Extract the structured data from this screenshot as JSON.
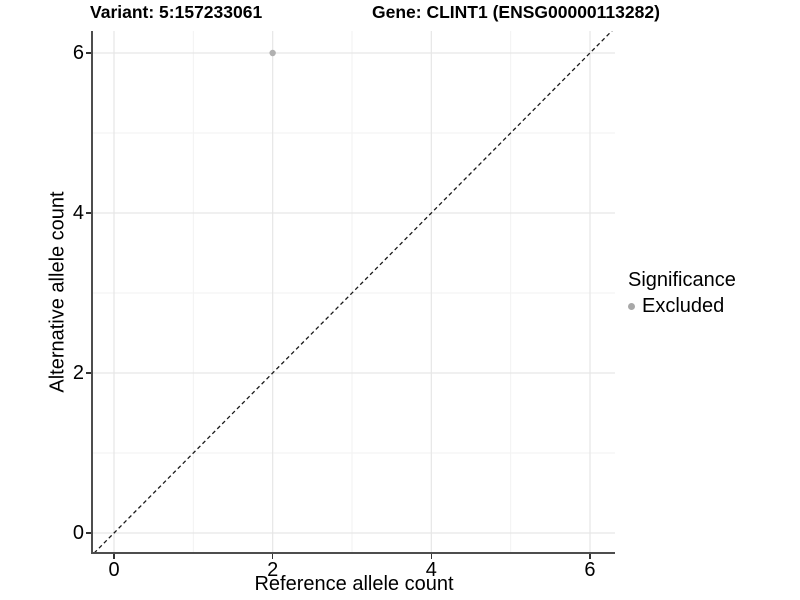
{
  "chart_data": {
    "type": "scatter",
    "title_left": "Variant: 5:157233061",
    "title_right": "Gene: CLINT1 (ENSG00000113282)",
    "xlabel": "Reference allele count",
    "ylabel": "Alternative allele count",
    "xlim": [
      -0.28,
      6.31
    ],
    "ylim": [
      -0.26,
      6.28
    ],
    "xticks": [
      0,
      2,
      4,
      6
    ],
    "yticks": [
      0,
      2,
      4,
      6
    ],
    "minor_xticks": [
      1,
      3,
      5
    ],
    "minor_yticks": [
      1,
      3,
      5
    ],
    "grid": true,
    "points": [
      {
        "x": 2,
        "y": 6,
        "series": "Excluded",
        "color": "#b0b0b0"
      }
    ],
    "identity_line": {
      "slope": 1,
      "intercept": 0,
      "style": "dashed",
      "color": "#1a1a1a"
    },
    "legend": {
      "title": "Significance",
      "position": "right",
      "items": [
        {
          "label": "Excluded",
          "color": "#a8a8a8",
          "marker": "circle"
        }
      ]
    },
    "colors": {
      "major_grid": "#e6e6e6",
      "minor_grid": "#f2f2f2",
      "axis_line": "#4d4d4d",
      "tick": "#333333",
      "text": "#000000"
    }
  }
}
